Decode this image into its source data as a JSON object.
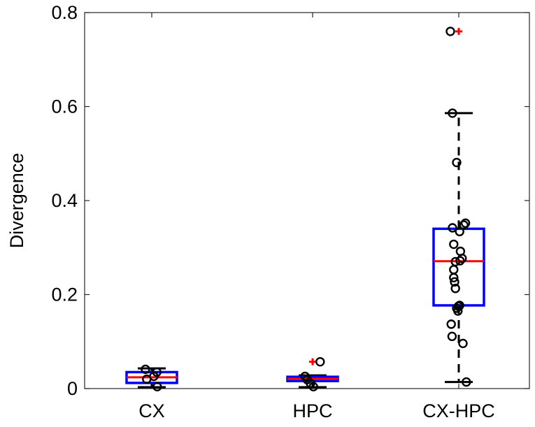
{
  "chart_data": {
    "type": "box",
    "title": "",
    "xlabel": "",
    "ylabel": "Divergence",
    "ylim": [
      0,
      0.8
    ],
    "yticks": [
      "0",
      "0.2",
      "0.4",
      "0.6",
      "0.8"
    ],
    "grid": false,
    "categories": [
      "CX",
      "HPC",
      "CX-HPC"
    ],
    "boxes": [
      {
        "category": "CX",
        "q1": 0.012,
        "median": 0.024,
        "q3": 0.035,
        "whisker_low": 0.003,
        "whisker_high": 0.043,
        "outliers": []
      },
      {
        "category": "HPC",
        "q1": 0.016,
        "median": 0.021,
        "q3": 0.025,
        "whisker_low": 0.003,
        "whisker_high": 0.028,
        "outliers": [
          0.057
        ]
      },
      {
        "category": "CX-HPC",
        "q1": 0.177,
        "median": 0.271,
        "q3": 0.34,
        "whisker_low": 0.014,
        "whisker_high": 0.586,
        "outliers": [
          0.76
        ]
      }
    ],
    "points": [
      {
        "category": "CX",
        "offsets": [
          -0.15,
          -0.12,
          0.05,
          0.12,
          0.13
        ],
        "values": [
          0.041,
          0.02,
          0.026,
          0.035,
          0.004
        ]
      },
      {
        "category": "HPC",
        "offsets": [
          -0.18,
          -0.13,
          -0.05,
          0.02,
          0.18
        ],
        "values": [
          0.026,
          0.019,
          0.011,
          0.004,
          0.057
        ]
      },
      {
        "category": "CX-HPC",
        "offsets": [
          -0.2,
          -0.15,
          -0.15,
          -0.12,
          -0.12,
          -0.12,
          -0.1,
          -0.08,
          -0.05,
          -0.05,
          -0.02,
          -0.01,
          0.02,
          0.02,
          0.03,
          0.04,
          0.08,
          0.1,
          0.12,
          0.16,
          0.18,
          -0.08
        ],
        "values": [
          0.76,
          0.586,
          0.342,
          0.307,
          0.253,
          0.236,
          0.227,
          0.213,
          0.481,
          0.171,
          0.165,
          0.175,
          0.177,
          0.334,
          0.272,
          0.292,
          0.277,
          0.096,
          0.348,
          0.352,
          0.014,
          0.27
        ]
      },
      {
        "category": "CX-HPC",
        "offsets": [
          -0.18,
          -0.16
        ],
        "values": [
          0.137,
          0.111
        ]
      }
    ],
    "colors": {
      "box": "#0000ff",
      "median": "#ff0000",
      "whisker": "#000000",
      "outlier": "#ff0000",
      "point": "#000000"
    }
  }
}
